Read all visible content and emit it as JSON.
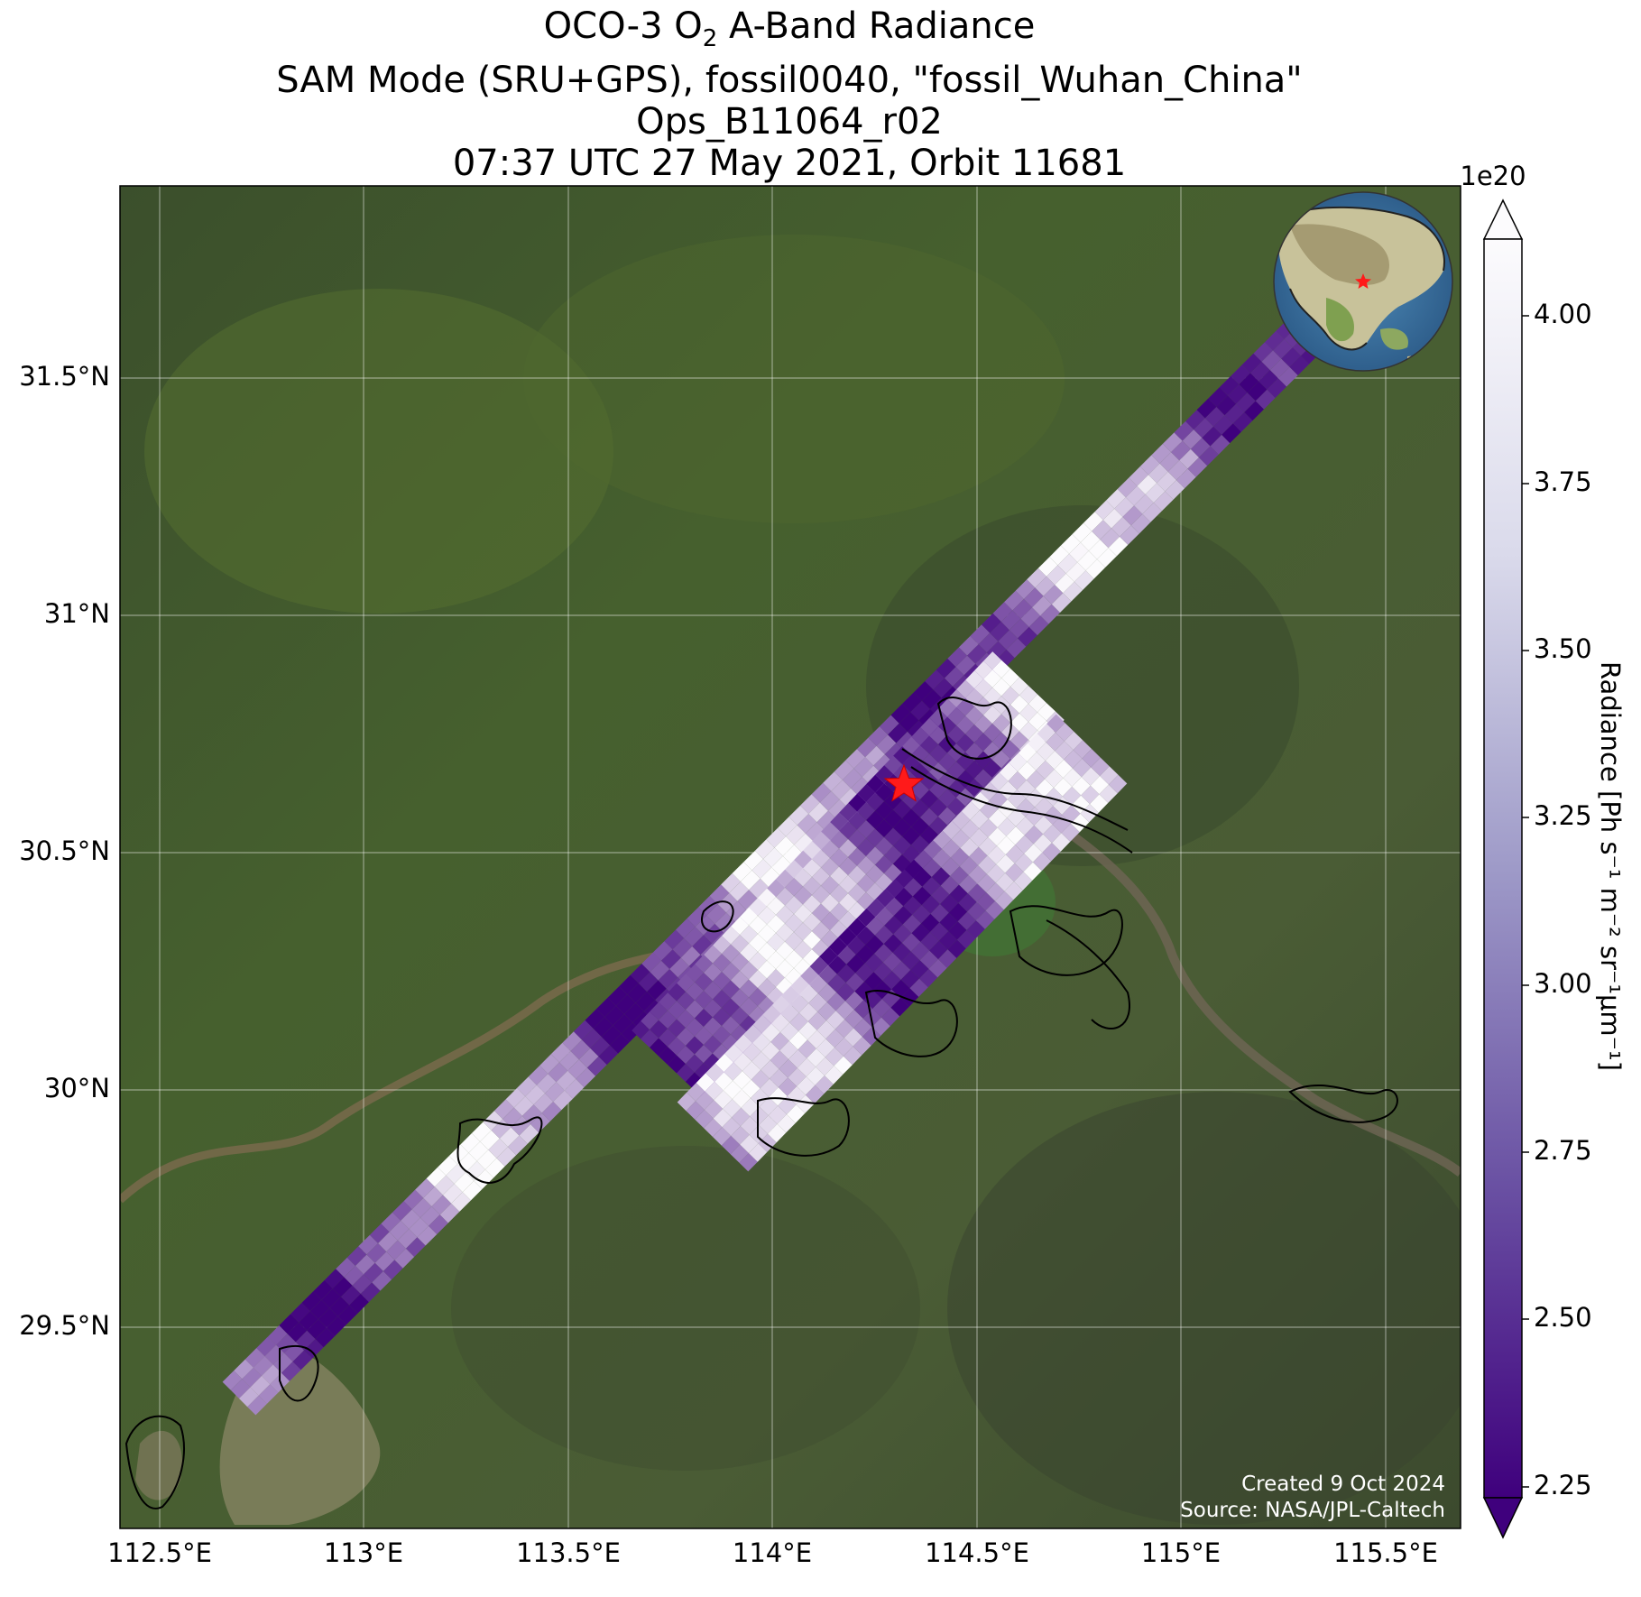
{
  "title": {
    "line1_prefix": "OCO-3 O",
    "line1_sub": "2",
    "line1_suffix": " A-Band Radiance",
    "line2": "SAM Mode (SRU+GPS), fossil0040, \"fossil_Wuhan_China\"",
    "line3": "Ops_B11064_r02",
    "line4": "07:37 UTC 27 May 2021, Orbit 11681"
  },
  "map": {
    "lon_range": [
      112.42,
      115.7
    ],
    "lat_range": [
      29.05,
      31.87
    ],
    "lon_ticks": [
      "112.5°E",
      "113°E",
      "113.5°E",
      "114°E",
      "114.5°E",
      "115°E",
      "115.5°E"
    ],
    "lat_ticks": [
      "29.5°N",
      "30°N",
      "30.5°N",
      "31°N",
      "31.5°N"
    ],
    "gridlines": true,
    "basemap": "satellite imagery",
    "target_marker": {
      "lon": 114.33,
      "lat": 30.64,
      "symbol": "red-star"
    },
    "inset_globe": {
      "placement": "top-right",
      "marker": "red-star"
    }
  },
  "colorbar": {
    "label": "Radiance [Ph s⁻¹ m⁻² sr⁻¹μm⁻¹]",
    "exponent": "1e20",
    "ticks": [
      "4.00",
      "3.75",
      "3.50",
      "3.25",
      "3.00",
      "2.75",
      "2.50",
      "2.25"
    ],
    "range": [
      2.22,
      4.1
    ],
    "colormap": "Purples_r",
    "extend": "both",
    "color_low": "#3f007d",
    "color_high": "#fcfbfd"
  },
  "footer": {
    "created": "Created 9 Oct 2024",
    "source": "Source: NASA/JPL-Caltech"
  }
}
